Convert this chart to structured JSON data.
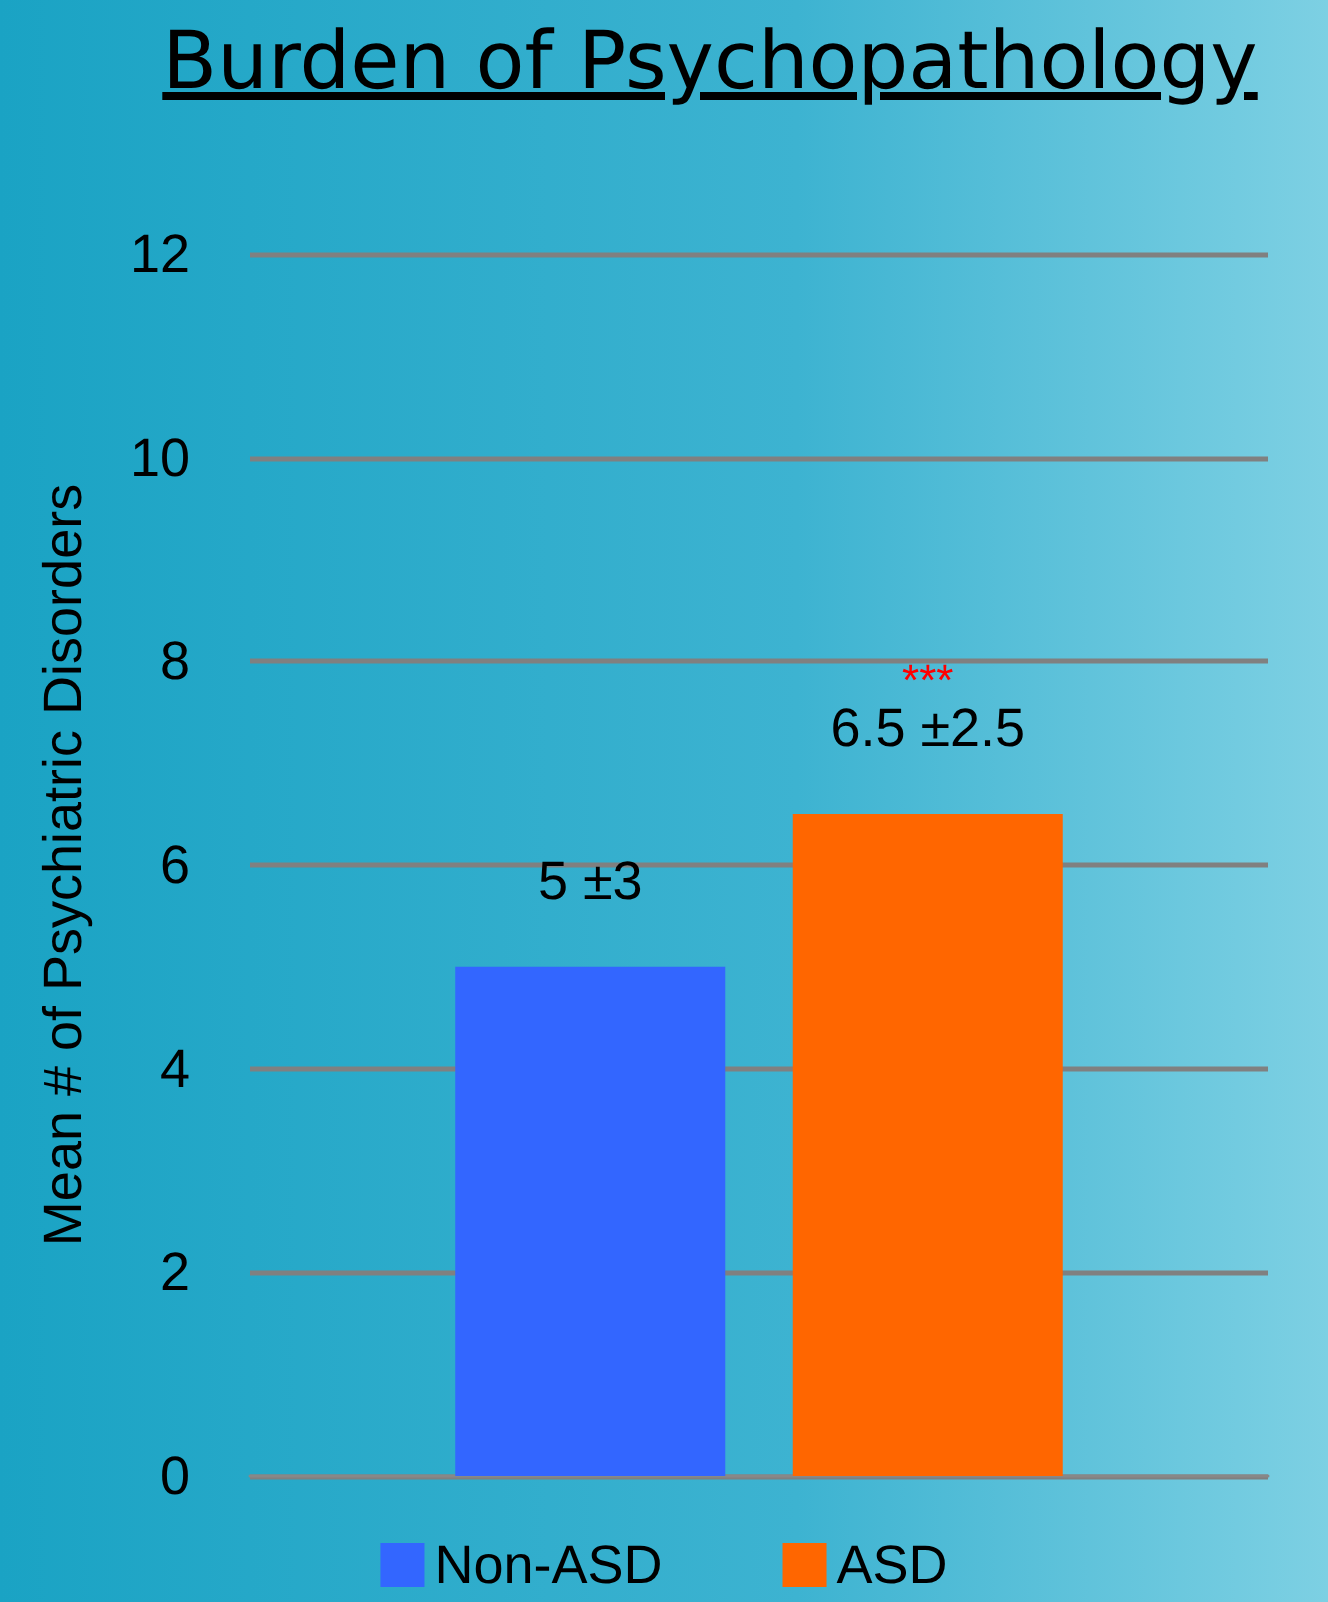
{
  "chart_data": {
    "type": "bar",
    "title": "Burden of Psychopathology",
    "ylabel": "Mean # of Psychiatric Disorders",
    "categories": [
      null
    ],
    "series": [
      {
        "name": "Non-ASD",
        "color": "#3366ff",
        "values": [
          5
        ],
        "value_labels": [
          "5 ±3"
        ]
      },
      {
        "name": "ASD",
        "color": "#ff6600",
        "values": [
          6.5
        ],
        "value_labels": [
          "6.5 ±2.5"
        ]
      }
    ],
    "annotations": [
      "***"
    ],
    "ylim": [
      0,
      12
    ],
    "yticks": [
      0,
      2,
      4,
      6,
      8,
      10,
      12
    ],
    "grid": "y",
    "legend": "bottom"
  }
}
